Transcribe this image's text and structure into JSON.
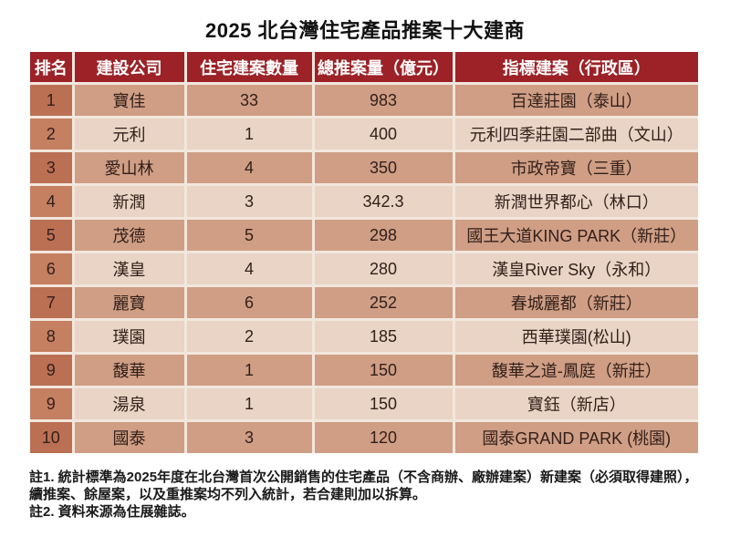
{
  "title": "2025 北台灣住宅產品推案十大建商",
  "chart_data": {
    "type": "table",
    "title": "2025 北台灣住宅產品推案十大建商",
    "columns": [
      "排名",
      "建設公司",
      "住宅建案數量",
      "總推案量（億元）",
      "指標建案（行政區）"
    ],
    "rows": [
      [
        "1",
        "寶佳",
        "33",
        "983",
        "百達莊園（泰山）"
      ],
      [
        "2",
        "元利",
        "1",
        "400",
        "元利四季莊園二部曲（文山）"
      ],
      [
        "3",
        "愛山林",
        "4",
        "350",
        "市政帝寶（三重）"
      ],
      [
        "4",
        "新潤",
        "3",
        "342.3",
        "新潤世界都心（林口）"
      ],
      [
        "5",
        "茂德",
        "5",
        "298",
        "國王大道KING PARK（新莊）"
      ],
      [
        "6",
        "漢皇",
        "4",
        "280",
        "漢皇River Sky（永和）"
      ],
      [
        "7",
        "麗寶",
        "6",
        "252",
        "春城麗都（新莊）"
      ],
      [
        "8",
        "璞園",
        "2",
        "185",
        "西華璞園(松山)"
      ],
      [
        "9",
        "馥華",
        "1",
        "150",
        "馥華之道-鳳庭（新莊）"
      ],
      [
        "9",
        "湯泉",
        "1",
        "150",
        "寶鈺（新店）"
      ],
      [
        "10",
        "國泰",
        "3",
        "120",
        "國泰GRAND PARK (桃園)"
      ]
    ],
    "notes": [
      "註1. 統計標準為2025年度在北台灣首次公開銷售的住宅產品（不含商辦、廠辦建案）新建案（必須取得建照），",
      "續推案、餘屋案，以及重推案均不列入統計，若合建則加以拆算。",
      "註2. 資料來源為住展雜誌。"
    ],
    "layout_hints": {
      "first_data_row_shade": "dark",
      "row_shading": "alternating",
      "rank_column_shaded_darker": true
    }
  },
  "colors": {
    "page_bg": "#FFFFFF",
    "header_bg": "#9C2227",
    "header_text": "#FFFFFF",
    "row_dark_bg": "#CF9E85",
    "row_light_bg": "#E9D4C5",
    "rank_dark_bg": "#BB7053",
    "rank_light_bg": "#C57F61",
    "divider": "#F2E7DD",
    "cell_text": "#33201A",
    "note_text": "#1A1A1A"
  }
}
